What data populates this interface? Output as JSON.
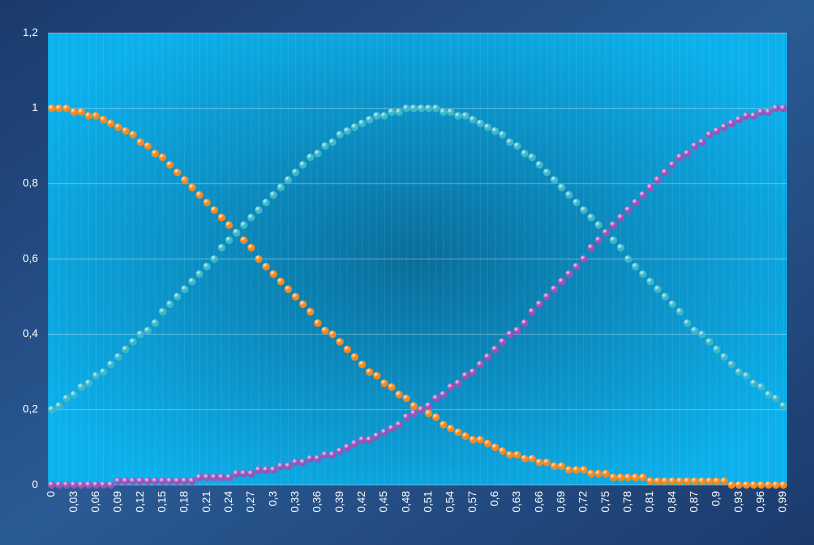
{
  "chart_data": {
    "type": "dot",
    "categories": [
      "0",
      null,
      null,
      "0,03",
      null,
      null,
      "0,06",
      null,
      null,
      "0,09",
      null,
      null,
      "0,12",
      null,
      null,
      "0,15",
      null,
      null,
      "0,18",
      null,
      null,
      "0,21",
      null,
      null,
      "0,24",
      null,
      null,
      "0,27",
      null,
      null,
      "0,3",
      null,
      null,
      "0,33",
      null,
      null,
      "0,36",
      null,
      null,
      "0,39",
      null,
      null,
      "0,42",
      null,
      null,
      "0,45",
      null,
      null,
      "0,48",
      null,
      null,
      "0,51",
      null,
      null,
      "0,54",
      null,
      null,
      "0,57",
      null,
      null,
      "0,6",
      null,
      null,
      "0,63",
      null,
      null,
      "0,66",
      null,
      null,
      "0,69",
      null,
      null,
      "0,72",
      null,
      null,
      "0,75",
      null,
      null,
      "0,78",
      null,
      null,
      "0,81",
      null,
      null,
      "0,84",
      null,
      null,
      "0,87",
      null,
      null,
      "0,9",
      null,
      null,
      "0,93",
      null,
      null,
      "0,96",
      null,
      null,
      "0,99"
    ],
    "series": [
      {
        "color": "#f28a22",
        "values": [
          1,
          1,
          1,
          0.99,
          0.99,
          0.98,
          0.98,
          0.97,
          0.96,
          0.95,
          0.94,
          0.93,
          0.91,
          0.9,
          0.88,
          0.87,
          0.85,
          0.83,
          0.81,
          0.79,
          0.77,
          0.75,
          0.73,
          0.71,
          0.69,
          0.67,
          0.65,
          0.63,
          0.6,
          0.58,
          0.56,
          0.54,
          0.52,
          0.5,
          0.48,
          0.46,
          0.43,
          0.41,
          0.4,
          0.38,
          0.36,
          0.34,
          0.32,
          0.3,
          0.29,
          0.27,
          0.26,
          0.24,
          0.23,
          0.21,
          0.2,
          0.19,
          0.18,
          0.16,
          0.15,
          0.14,
          0.13,
          0.12,
          0.12,
          0.11,
          0.1,
          0.09,
          0.08,
          0.08,
          0.07,
          0.07,
          0.06,
          0.06,
          0.05,
          0.05,
          0.04,
          0.04,
          0.04,
          0.03,
          0.03,
          0.03,
          0.02,
          0.02,
          0.02,
          0.02,
          0.02,
          0.01,
          0.01,
          0.01,
          0.01,
          0.01,
          0.01,
          0.01,
          0.01,
          0.01,
          0.01,
          0.01,
          0,
          0,
          0,
          0,
          0,
          0,
          0,
          0
        ]
      },
      {
        "color": "#3cb8c9",
        "values": [
          0.2,
          0.21,
          0.23,
          0.24,
          0.26,
          0.27,
          0.29,
          0.3,
          0.32,
          0.34,
          0.36,
          0.38,
          0.4,
          0.41,
          0.43,
          0.46,
          0.48,
          0.5,
          0.52,
          0.54,
          0.56,
          0.58,
          0.6,
          0.63,
          0.65,
          0.67,
          0.69,
          0.71,
          0.73,
          0.75,
          0.77,
          0.79,
          0.81,
          0.83,
          0.85,
          0.87,
          0.88,
          0.9,
          0.91,
          0.93,
          0.94,
          0.95,
          0.96,
          0.97,
          0.98,
          0.98,
          0.99,
          0.99,
          1,
          1,
          1,
          1,
          1,
          0.99,
          0.99,
          0.98,
          0.98,
          0.97,
          0.96,
          0.95,
          0.94,
          0.93,
          0.91,
          0.9,
          0.88,
          0.87,
          0.85,
          0.83,
          0.81,
          0.79,
          0.77,
          0.75,
          0.73,
          0.71,
          0.69,
          0.67,
          0.65,
          0.63,
          0.6,
          0.58,
          0.56,
          0.54,
          0.52,
          0.5,
          0.48,
          0.46,
          0.43,
          0.41,
          0.4,
          0.38,
          0.36,
          0.34,
          0.32,
          0.3,
          0.29,
          0.27,
          0.26,
          0.24,
          0.23,
          0.21
        ]
      },
      {
        "color": "#9a52b8",
        "values": [
          0,
          0,
          0,
          0,
          0,
          0,
          0,
          0,
          0,
          0.01,
          0.01,
          0.01,
          0.01,
          0.01,
          0.01,
          0.01,
          0.01,
          0.01,
          0.01,
          0.01,
          0.02,
          0.02,
          0.02,
          0.02,
          0.02,
          0.03,
          0.03,
          0.03,
          0.04,
          0.04,
          0.04,
          0.05,
          0.05,
          0.06,
          0.06,
          0.07,
          0.07,
          0.08,
          0.08,
          0.09,
          0.1,
          0.11,
          0.12,
          0.12,
          0.13,
          0.14,
          0.15,
          0.16,
          0.18,
          0.19,
          0.2,
          0.21,
          0.23,
          0.24,
          0.26,
          0.27,
          0.29,
          0.3,
          0.32,
          0.34,
          0.36,
          0.38,
          0.4,
          0.41,
          0.43,
          0.46,
          0.48,
          0.5,
          0.52,
          0.54,
          0.56,
          0.58,
          0.6,
          0.63,
          0.65,
          0.67,
          0.69,
          0.71,
          0.73,
          0.75,
          0.77,
          0.79,
          0.81,
          0.83,
          0.85,
          0.87,
          0.88,
          0.9,
          0.91,
          0.93,
          0.94,
          0.95,
          0.96,
          0.97,
          0.98,
          0.98,
          0.99,
          0.99,
          1,
          1
        ]
      }
    ],
    "ylim": [
      0,
      1.2
    ],
    "yticks": [
      0,
      {
        "value": 0.2,
        "label": "0,2"
      },
      {
        "value": 0.4,
        "label": "0,4"
      },
      {
        "value": 0.6,
        "label": "0,6"
      },
      {
        "value": 0.8,
        "label": "0,8"
      },
      1,
      {
        "value": 1.2,
        "label": "1,2"
      }
    ],
    "grid": true
  }
}
